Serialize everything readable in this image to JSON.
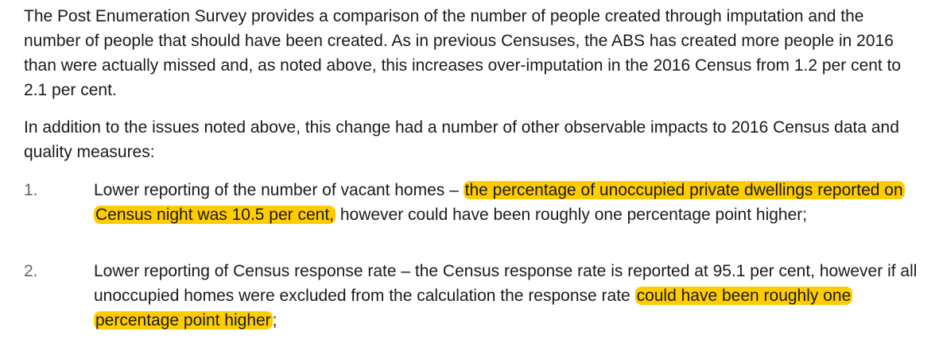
{
  "paragraphs": [
    "The Post Enumeration Survey provides a comparison of the number of people created through imputation and the number of people that should have been created. As in previous Censuses, the ABS has created more people in 2016 than were actually missed and, as noted above, this increases over-imputation in the 2016 Census from 1.2 per cent to 2.1 per cent.",
    "In addition to the issues noted above, this change had a number of other observable impacts to 2016 Census data and quality measures:"
  ],
  "list": [
    {
      "number": "1.",
      "text_before": "Lower reporting of the number of vacant homes – ",
      "highlight": "the percentage of unoccupied private dwellings reported on Census night was 10.5 per cent,",
      "text_after": " however could have been roughly one percentage point higher;"
    },
    {
      "number": "2.",
      "text_before": "Lower reporting of Census response rate – the Census response rate is reported at 95.1 per cent, however if all unoccupied homes were excluded from the calculation the response rate ",
      "highlight": "could have been roughly one percentage point higher",
      "text_after": ";"
    }
  ],
  "colors": {
    "highlight": "#ffcc00",
    "text": "#1a1a1a",
    "list_number": "#666666"
  }
}
